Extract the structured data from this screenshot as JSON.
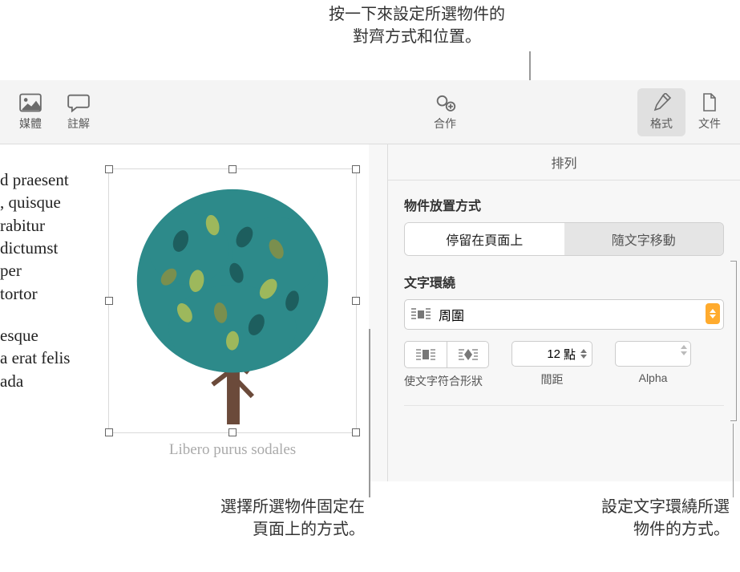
{
  "callouts": {
    "top": "按一下來設定所選物件的\n對齊方式和位置。",
    "bottom_left": "選擇所選物件固定在\n頁面上的方式。",
    "bottom_right": "設定文字環繞所選\n物件的方式。"
  },
  "toolbar": {
    "media": "媒體",
    "comment": "註解",
    "collaborate": "合作",
    "format": "格式",
    "document": "文件"
  },
  "doc": {
    "para1_lines": [
      "d praesent",
      ", quisque",
      "rabitur",
      "dictumst",
      "per",
      "tortor"
    ],
    "para2_lines": [
      "esque",
      "a erat felis",
      "ada"
    ],
    "caption": "Libero purus sodales"
  },
  "sidebar": {
    "tab": "排列",
    "placement_title": "物件放置方式",
    "seg_stay": "停留在頁面上",
    "seg_move": "隨文字移動",
    "wrap_title": "文字環繞",
    "wrap_value": "周圍",
    "fit_label": "使文字符合形狀",
    "spacing_value": "12",
    "spacing_unit": "點",
    "spacing_label": "間距",
    "alpha_label": "Alpha"
  },
  "colors": {
    "tree_foliage": "#2d8a8a",
    "tree_trunk": "#6b4a3a",
    "leaf_dark": "#1d5e5e",
    "leaf_green": "#9db85c",
    "leaf_olive": "#7a8f4e",
    "accent_orange": "#ffab2e"
  }
}
